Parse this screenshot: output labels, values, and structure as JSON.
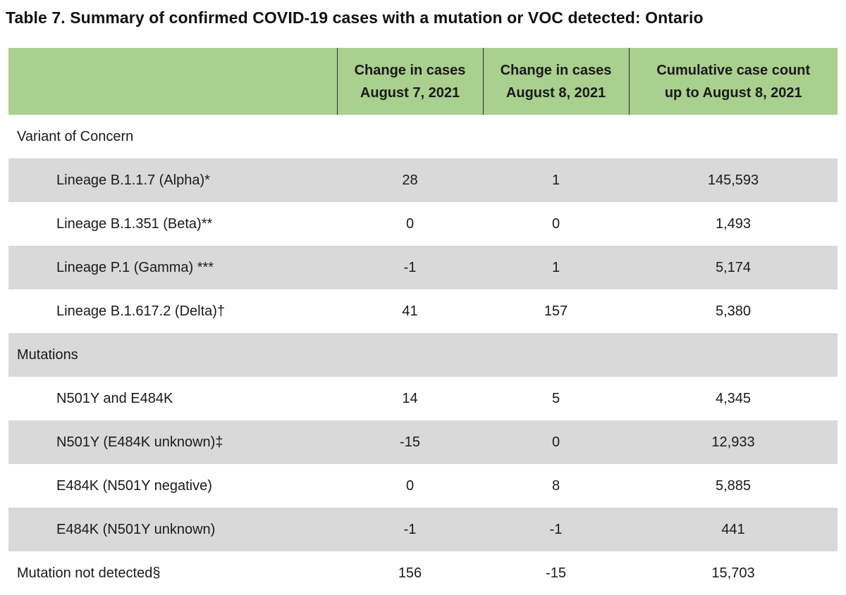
{
  "title": "Table 7. Summary of confirmed COVID-19 cases with a mutation or VOC detected: Ontario",
  "header": {
    "columns": [
      {
        "line1": "",
        "line2": ""
      },
      {
        "line1": "Change in cases",
        "line2": "August 7, 2021"
      },
      {
        "line1": "Change in cases",
        "line2": "August 8, 2021"
      },
      {
        "line1": "Cumulative case count",
        "line2": "up to August 8, 2021"
      }
    ]
  },
  "rows": [
    {
      "label": "Variant of Concern",
      "aug7": "",
      "aug8": "",
      "cumulative": ""
    },
    {
      "label": "Lineage B.1.1.7 (Alpha)*",
      "aug7": "28",
      "aug8": "1",
      "cumulative": "145,593"
    },
    {
      "label": "Lineage B.1.351 (Beta)**",
      "aug7": "0",
      "aug8": "0",
      "cumulative": "1,493"
    },
    {
      "label": "Lineage P.1 (Gamma) ***",
      "aug7": "-1",
      "aug8": "1",
      "cumulative": "5,174"
    },
    {
      "label": "Lineage B.1.617.2 (Delta)†",
      "aug7": "41",
      "aug8": "157",
      "cumulative": "5,380"
    },
    {
      "label": "Mutations",
      "aug7": "",
      "aug8": "",
      "cumulative": ""
    },
    {
      "label": "N501Y and E484K",
      "aug7": "14",
      "aug8": "5",
      "cumulative": "4,345"
    },
    {
      "label": "N501Y (E484K unknown)‡",
      "aug7": "-15",
      "aug8": "0",
      "cumulative": "12,933"
    },
    {
      "label": "E484K (N501Y negative)",
      "aug7": "0",
      "aug8": "8",
      "cumulative": "5,885"
    },
    {
      "label": "E484K (N501Y unknown)",
      "aug7": "-1",
      "aug8": "-1",
      "cumulative": "441"
    },
    {
      "label": "Mutation not detected§",
      "aug7": "156",
      "aug8": "-15",
      "cumulative": "15,703"
    }
  ],
  "colors": {
    "header_bg": "#a9d08e",
    "shaded_row_bg": "#d9d9d9"
  }
}
